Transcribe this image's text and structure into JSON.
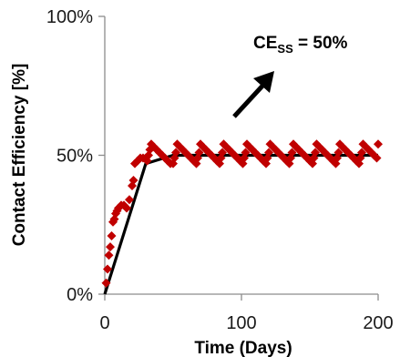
{
  "chart_data": {
    "type": "scatter",
    "title": "",
    "xlabel": "Time (Days)",
    "ylabel": "Contact Efficiency [%]",
    "xlim": [
      0,
      200
    ],
    "ylim": [
      0,
      100
    ],
    "x_ticks": [
      0,
      100,
      200
    ],
    "x_tick_labels": [
      "0",
      "100",
      "200"
    ],
    "y_ticks": [
      0,
      50,
      100
    ],
    "y_tick_labels": [
      "0%",
      "50%",
      "100%"
    ],
    "grid": false,
    "legend": "none",
    "annotation": {
      "text_main": "CE",
      "text_sub": "SS",
      "text_rest": " = 50%",
      "arrow_direction": "up-right"
    },
    "series": [
      {
        "type": "line",
        "color": "#000000",
        "points": [
          [
            0,
            0
          ],
          [
            30,
            47
          ],
          [
            50,
            50
          ],
          [
            200,
            50
          ]
        ]
      },
      {
        "type": "scatter",
        "marker": "diamond",
        "color": "#c00000",
        "points": [
          [
            1,
            4
          ],
          [
            2,
            9
          ],
          [
            3,
            14
          ],
          [
            4,
            17
          ],
          [
            5,
            21
          ],
          [
            6,
            26
          ],
          [
            7,
            27
          ],
          [
            8,
            29
          ],
          [
            9,
            30
          ],
          [
            10,
            31
          ],
          [
            12,
            32
          ],
          [
            14,
            32
          ],
          [
            16,
            31
          ],
          [
            18,
            34
          ],
          [
            20,
            39
          ],
          [
            21,
            41
          ],
          [
            22,
            47
          ],
          [
            24,
            48
          ],
          [
            26,
            49
          ],
          [
            28,
            49
          ],
          [
            30,
            49
          ],
          [
            31,
            48
          ],
          [
            32,
            50
          ],
          [
            33,
            52
          ],
          [
            34,
            54
          ],
          [
            36,
            53
          ],
          [
            38,
            52
          ],
          [
            40,
            51
          ],
          [
            42,
            50
          ],
          [
            44,
            49
          ],
          [
            46,
            48
          ],
          [
            48,
            47
          ],
          [
            50,
            47
          ],
          [
            51,
            49
          ],
          [
            52,
            51
          ],
          [
            53,
            54
          ],
          [
            55,
            53
          ],
          [
            57,
            52
          ],
          [
            59,
            51
          ],
          [
            61,
            50
          ],
          [
            63,
            49
          ],
          [
            65,
            48
          ],
          [
            67,
            47
          ],
          [
            68,
            49
          ],
          [
            69,
            51
          ],
          [
            70,
            54
          ],
          [
            72,
            53
          ],
          [
            74,
            52
          ],
          [
            76,
            51
          ],
          [
            78,
            50
          ],
          [
            80,
            49
          ],
          [
            82,
            48
          ],
          [
            84,
            47
          ],
          [
            85,
            49
          ],
          [
            86,
            51
          ],
          [
            87,
            54
          ],
          [
            89,
            53
          ],
          [
            91,
            52
          ],
          [
            93,
            51
          ],
          [
            95,
            50
          ],
          [
            97,
            49
          ],
          [
            99,
            48
          ],
          [
            101,
            47
          ],
          [
            102,
            49
          ],
          [
            103,
            51
          ],
          [
            104,
            54
          ],
          [
            106,
            53
          ],
          [
            108,
            52
          ],
          [
            110,
            51
          ],
          [
            112,
            50
          ],
          [
            114,
            49
          ],
          [
            116,
            48
          ],
          [
            118,
            47
          ],
          [
            119,
            49
          ],
          [
            120,
            51
          ],
          [
            121,
            54
          ],
          [
            123,
            53
          ],
          [
            125,
            52
          ],
          [
            127,
            51
          ],
          [
            129,
            50
          ],
          [
            131,
            49
          ],
          [
            133,
            48
          ],
          [
            135,
            47
          ],
          [
            136,
            49
          ],
          [
            137,
            51
          ],
          [
            138,
            54
          ],
          [
            140,
            53
          ],
          [
            142,
            52
          ],
          [
            144,
            51
          ],
          [
            146,
            50
          ],
          [
            148,
            49
          ],
          [
            150,
            48
          ],
          [
            152,
            47
          ],
          [
            153,
            49
          ],
          [
            154,
            51
          ],
          [
            155,
            54
          ],
          [
            157,
            53
          ],
          [
            159,
            52
          ],
          [
            161,
            51
          ],
          [
            163,
            50
          ],
          [
            165,
            49
          ],
          [
            167,
            48
          ],
          [
            169,
            47
          ],
          [
            170,
            49
          ],
          [
            171,
            51
          ],
          [
            172,
            54
          ],
          [
            174,
            53
          ],
          [
            176,
            52
          ],
          [
            178,
            51
          ],
          [
            180,
            50
          ],
          [
            182,
            49
          ],
          [
            184,
            48
          ],
          [
            186,
            47
          ],
          [
            187,
            49
          ],
          [
            188,
            51
          ],
          [
            189,
            54
          ],
          [
            191,
            53
          ],
          [
            193,
            52
          ],
          [
            195,
            51
          ],
          [
            197,
            50
          ],
          [
            199,
            49
          ],
          [
            200,
            54
          ]
        ]
      }
    ]
  }
}
